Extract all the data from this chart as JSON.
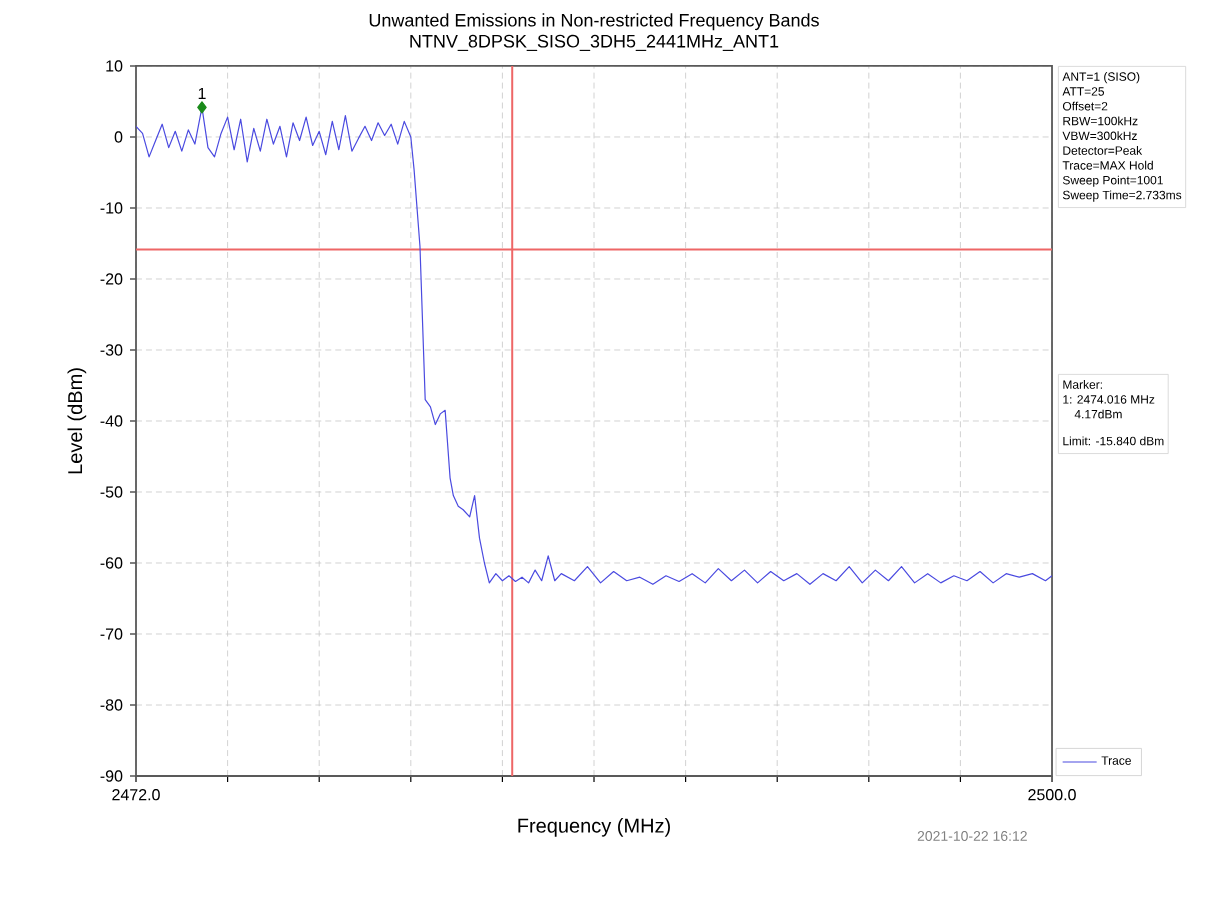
{
  "chart_data": {
    "type": "line",
    "title": "Unwanted Emissions in Non-restricted Frequency Bands",
    "subtitle": "NTNV_8DPSK_SISO_3DH5_2441MHz_ANT1",
    "xlabel": "Frequency (MHz)",
    "ylabel": "Level (dBm)",
    "xlim": [
      2472,
      2500
    ],
    "ylim": [
      -90,
      10
    ],
    "xticks": [
      {
        "value": 2472,
        "label": "2472.0"
      },
      {
        "value": 2474.8,
        "label": null
      },
      {
        "value": 2477.6,
        "label": null
      },
      {
        "value": 2480.4,
        "label": null
      },
      {
        "value": 2483.2,
        "label": null
      },
      {
        "value": 2486,
        "label": null
      },
      {
        "value": 2488.8,
        "label": null
      },
      {
        "value": 2491.6,
        "label": null
      },
      {
        "value": 2494.4,
        "label": null
      },
      {
        "value": 2497.2,
        "label": null
      },
      {
        "value": 2500,
        "label": "2500.0"
      }
    ],
    "yticks": [
      -90,
      -80,
      -70,
      -60,
      -50,
      -40,
      -30,
      -20,
      -10,
      0,
      10
    ],
    "grid": true,
    "legend": "bottom right",
    "line_style": "solid",
    "ref_lines": [
      {
        "axis": "x",
        "value": 2483.5,
        "color": "#ee6666"
      },
      {
        "axis": "y",
        "value": -15.84,
        "color": "#ee6666"
      }
    ],
    "series": [
      {
        "name": "Trace",
        "type": "line",
        "color": "#4a4ae0",
        "marker": "none",
        "x": [
          2472.0,
          2472.2,
          2472.4,
          2472.6,
          2472.8,
          2473.0,
          2473.2,
          2473.4,
          2473.6,
          2473.8,
          2474.016,
          2474.2,
          2474.4,
          2474.6,
          2474.8,
          2475.0,
          2475.2,
          2475.4,
          2475.6,
          2475.8,
          2476.0,
          2476.2,
          2476.4,
          2476.6,
          2476.8,
          2477.0,
          2477.2,
          2477.4,
          2477.6,
          2477.8,
          2478.0,
          2478.2,
          2478.4,
          2478.6,
          2478.8,
          2479.0,
          2479.2,
          2479.4,
          2479.6,
          2479.8,
          2480.0,
          2480.2,
          2480.4,
          2480.5,
          2480.68,
          2480.84,
          2481.0,
          2481.15,
          2481.3,
          2481.45,
          2481.6,
          2481.7,
          2481.85,
          2482.0,
          2482.2,
          2482.35,
          2482.5,
          2482.65,
          2482.8,
          2483.0,
          2483.2,
          2483.4,
          2483.6,
          2483.8,
          2484.0,
          2484.2,
          2484.4,
          2484.6,
          2484.8,
          2485.0,
          2485.4,
          2485.8,
          2486.2,
          2486.6,
          2487.0,
          2487.4,
          2487.8,
          2488.2,
          2488.6,
          2489.0,
          2489.4,
          2489.8,
          2490.2,
          2490.6,
          2491.0,
          2491.4,
          2491.8,
          2492.2,
          2492.6,
          2493.0,
          2493.4,
          2493.8,
          2494.2,
          2494.6,
          2495.0,
          2495.4,
          2495.8,
          2496.2,
          2496.6,
          2497.0,
          2497.4,
          2497.8,
          2498.2,
          2498.6,
          2499.0,
          2499.4,
          2499.8,
          2500.0
        ],
        "values": [
          1.5,
          0.5,
          -2.8,
          -0.5,
          1.8,
          -1.5,
          0.8,
          -2.0,
          1.0,
          -1.0,
          4.17,
          -1.5,
          -2.8,
          0.5,
          2.8,
          -1.8,
          2.5,
          -3.5,
          1.2,
          -2.0,
          2.5,
          -1.0,
          1.5,
          -2.8,
          2.0,
          -0.5,
          2.8,
          -1.2,
          0.8,
          -2.5,
          2.2,
          -1.8,
          3.0,
          -2.0,
          -0.2,
          1.5,
          -0.5,
          2.0,
          0.2,
          1.8,
          -1.0,
          2.2,
          0.0,
          -4.6,
          -15.4,
          -37.0,
          -38.0,
          -40.5,
          -39.0,
          -38.5,
          -48.0,
          -50.5,
          -52.0,
          -52.5,
          -53.5,
          -50.5,
          -56.5,
          -60.0,
          -62.8,
          -61.5,
          -62.5,
          -61.8,
          -62.6,
          -62.0,
          -62.8,
          -61.0,
          -62.5,
          -59.0,
          -62.5,
          -61.5,
          -62.5,
          -60.5,
          -62.8,
          -61.2,
          -62.5,
          -62.0,
          -63.0,
          -61.8,
          -62.6,
          -61.5,
          -62.8,
          -60.8,
          -62.5,
          -61.0,
          -62.8,
          -61.2,
          -62.5,
          -61.5,
          -63.0,
          -61.5,
          -62.5,
          -60.5,
          -62.8,
          -61.0,
          -62.5,
          -60.5,
          -62.8,
          -61.5,
          -62.8,
          -61.8,
          -62.5,
          -61.2,
          -62.8,
          -61.5,
          -62.0,
          -61.5,
          -62.5,
          -61.8
        ]
      },
      {
        "type": "scatter",
        "color": "#1a8a1a",
        "marker": "diamond",
        "x": [
          2474.016
        ],
        "values": [
          4.17
        ]
      }
    ],
    "annotations": [
      {
        "text": "1",
        "x": 2474.016,
        "y": 4.17
      },
      "ANT=1 (SISO)",
      "ATT=25",
      "Offset=2",
      "RBW=100kHz",
      "VBW=300kHz",
      "Detector=Peak",
      "Trace=MAX Hold",
      "Sweep Point=1001",
      "Sweep Time=2.733ms",
      "Marker:",
      "1: 2474.016 MHz",
      "4.17dBm",
      "Limit: -15.840 dBm",
      "2021-10-22 16:12"
    ]
  }
}
